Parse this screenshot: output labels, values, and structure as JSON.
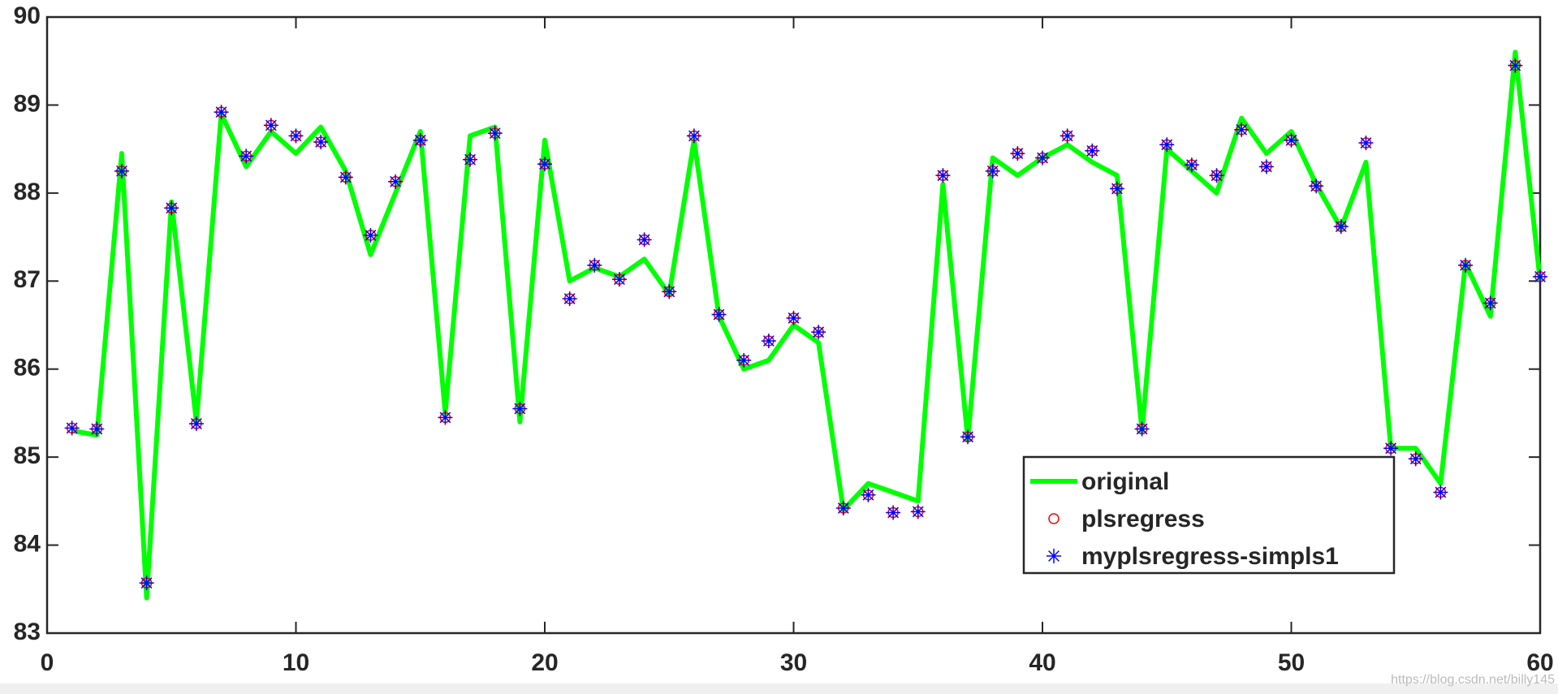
{
  "chart_data": {
    "type": "line",
    "x": [
      1,
      2,
      3,
      4,
      5,
      6,
      7,
      8,
      9,
      10,
      11,
      12,
      13,
      14,
      15,
      16,
      17,
      18,
      19,
      20,
      21,
      22,
      23,
      24,
      25,
      26,
      27,
      28,
      29,
      30,
      31,
      32,
      33,
      34,
      35,
      36,
      37,
      38,
      39,
      40,
      41,
      42,
      43,
      44,
      45,
      46,
      47,
      48,
      49,
      50,
      51,
      52,
      53,
      54,
      55,
      56,
      57,
      58,
      59,
      60
    ],
    "series": [
      {
        "name": "original",
        "color": "#00ff00",
        "style": "line",
        "values": [
          85.3,
          85.25,
          88.45,
          83.4,
          87.9,
          85.4,
          88.9,
          88.3,
          88.7,
          88.45,
          88.75,
          88.25,
          87.3,
          88.0,
          88.7,
          85.5,
          88.65,
          88.75,
          85.4,
          88.6,
          87.0,
          87.15,
          87.05,
          87.25,
          86.85,
          88.6,
          86.6,
          86.0,
          86.1,
          86.5,
          86.3,
          84.4,
          84.7,
          84.6,
          84.5,
          88.1,
          85.2,
          88.4,
          88.2,
          88.4,
          88.55,
          88.35,
          88.2,
          85.3,
          88.5,
          88.25,
          88.0,
          88.85,
          88.45,
          88.7,
          88.1,
          87.6,
          88.35,
          85.1,
          85.1,
          84.7,
          87.2,
          86.6,
          89.6,
          87.0
        ]
      },
      {
        "name": "plsregress",
        "color": "#ff0000",
        "style": "circle",
        "values": [
          85.33,
          85.32,
          88.25,
          83.57,
          87.83,
          85.38,
          88.92,
          88.42,
          88.77,
          88.65,
          88.58,
          88.18,
          87.52,
          88.13,
          88.6,
          85.45,
          88.38,
          88.68,
          85.55,
          88.33,
          86.8,
          87.18,
          87.02,
          87.47,
          86.88,
          88.65,
          86.62,
          86.1,
          86.32,
          86.58,
          86.42,
          84.42,
          84.57,
          84.37,
          84.38,
          88.2,
          85.23,
          88.25,
          88.45,
          88.4,
          88.65,
          88.48,
          88.05,
          85.32,
          88.55,
          88.32,
          88.2,
          88.72,
          88.3,
          88.6,
          88.08,
          87.62,
          88.57,
          85.1,
          84.98,
          84.6,
          87.18,
          86.75,
          89.45,
          87.05
        ]
      },
      {
        "name": "myplsregress-simpls1",
        "color": "#0000ff",
        "style": "asterisk",
        "values": [
          85.33,
          85.32,
          88.25,
          83.57,
          87.83,
          85.38,
          88.92,
          88.42,
          88.77,
          88.65,
          88.58,
          88.18,
          87.52,
          88.13,
          88.6,
          85.45,
          88.38,
          88.68,
          85.55,
          88.33,
          86.8,
          87.18,
          87.02,
          87.47,
          86.88,
          88.65,
          86.62,
          86.1,
          86.32,
          86.58,
          86.42,
          84.42,
          84.57,
          84.37,
          84.38,
          88.2,
          85.23,
          88.25,
          88.45,
          88.4,
          88.65,
          88.48,
          88.05,
          85.32,
          88.55,
          88.32,
          88.2,
          88.72,
          88.3,
          88.6,
          88.08,
          87.62,
          88.57,
          85.1,
          84.98,
          84.6,
          87.18,
          86.75,
          89.45,
          87.05
        ]
      }
    ],
    "xlim": [
      0,
      60
    ],
    "xticks": [
      0,
      10,
      20,
      30,
      40,
      50,
      60
    ],
    "ylim": [
      83,
      90
    ],
    "yticks": [
      83,
      84,
      85,
      86,
      87,
      88,
      89,
      90
    ],
    "legend": "lower right",
    "watermark": "https://blog.csdn.net/billy145"
  }
}
